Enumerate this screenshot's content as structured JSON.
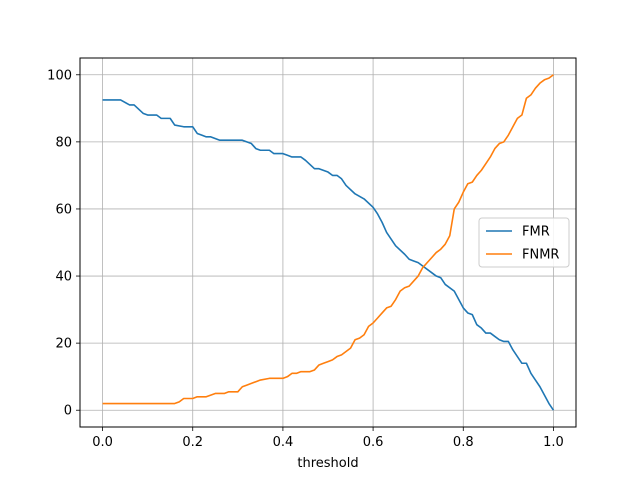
{
  "chart_data": {
    "type": "line",
    "title": "",
    "xlabel": "threshold",
    "ylabel": "",
    "xlim": [
      -0.05,
      1.05
    ],
    "ylim": [
      -5,
      105
    ],
    "xticks": [
      0.0,
      0.2,
      0.4,
      0.6,
      0.8,
      1.0
    ],
    "xtick_labels": [
      "0.0",
      "0.2",
      "0.4",
      "0.6",
      "0.8",
      "1.0"
    ],
    "yticks": [
      0,
      20,
      40,
      60,
      80,
      100
    ],
    "ytick_labels": [
      "0",
      "20",
      "40",
      "60",
      "80",
      "100"
    ],
    "grid": true,
    "legend_position": "center-right",
    "series": [
      {
        "name": "FMR",
        "color": "#1f77b4",
        "x": [
          0.0,
          0.04,
          0.06,
          0.07,
          0.09,
          0.1,
          0.12,
          0.13,
          0.15,
          0.16,
          0.18,
          0.2,
          0.21,
          0.22,
          0.23,
          0.24,
          0.26,
          0.28,
          0.31,
          0.33,
          0.34,
          0.35,
          0.37,
          0.38,
          0.4,
          0.41,
          0.42,
          0.44,
          0.45,
          0.47,
          0.48,
          0.5,
          0.51,
          0.52,
          0.53,
          0.54,
          0.56,
          0.58,
          0.6,
          0.61,
          0.62,
          0.63,
          0.65,
          0.67,
          0.68,
          0.69,
          0.7,
          0.71,
          0.73,
          0.74,
          0.75,
          0.76,
          0.78,
          0.79,
          0.8,
          0.81,
          0.82,
          0.83,
          0.84,
          0.85,
          0.86,
          0.87,
          0.88,
          0.89,
          0.9,
          0.91,
          0.92,
          0.93,
          0.94,
          0.95,
          0.96,
          0.97,
          0.98,
          0.99,
          1.0
        ],
        "y": [
          92.5,
          92.5,
          91,
          91,
          88.5,
          88,
          88,
          87,
          87,
          85,
          84.5,
          84.5,
          82.5,
          82,
          81.5,
          81.5,
          80.5,
          80.5,
          80.5,
          79.5,
          78,
          77.5,
          77.5,
          76.5,
          76.5,
          76,
          75.5,
          75.5,
          74.5,
          72,
          72,
          71,
          70,
          70,
          69,
          67,
          64.5,
          63,
          60.5,
          58.5,
          56,
          53,
          49,
          46.5,
          45,
          44.5,
          44,
          43,
          41,
          40,
          39.5,
          37.5,
          35.5,
          33,
          30.5,
          29,
          28.5,
          25.5,
          24.5,
          23,
          23,
          22,
          21,
          20.5,
          20.5,
          18,
          16,
          14,
          14,
          11,
          9,
          7,
          4.5,
          2,
          0
        ]
      },
      {
        "name": "FNMR",
        "color": "#ff7f0e",
        "x": [
          0.0,
          0.04,
          0.1,
          0.16,
          0.17,
          0.18,
          0.2,
          0.21,
          0.23,
          0.24,
          0.25,
          0.27,
          0.28,
          0.3,
          0.31,
          0.32,
          0.33,
          0.34,
          0.35,
          0.37,
          0.38,
          0.4,
          0.41,
          0.42,
          0.43,
          0.44,
          0.46,
          0.47,
          0.48,
          0.49,
          0.5,
          0.51,
          0.52,
          0.53,
          0.54,
          0.55,
          0.56,
          0.57,
          0.58,
          0.59,
          0.6,
          0.61,
          0.62,
          0.63,
          0.64,
          0.65,
          0.66,
          0.67,
          0.68,
          0.69,
          0.7,
          0.71,
          0.72,
          0.73,
          0.74,
          0.75,
          0.76,
          0.77,
          0.78,
          0.79,
          0.8,
          0.81,
          0.82,
          0.83,
          0.84,
          0.85,
          0.86,
          0.87,
          0.88,
          0.89,
          0.9,
          0.91,
          0.92,
          0.93,
          0.94,
          0.95,
          0.96,
          0.97,
          0.98,
          0.99,
          1.0
        ],
        "y": [
          2,
          2,
          2,
          2,
          2.5,
          3.5,
          3.5,
          4,
          4,
          4.5,
          5,
          5,
          5.5,
          5.5,
          7,
          7.5,
          8,
          8.5,
          9,
          9.5,
          9.5,
          9.5,
          10,
          11,
          11,
          11.5,
          11.5,
          12,
          13.5,
          14,
          14.5,
          15,
          16,
          16.5,
          17.5,
          18.5,
          21,
          21.5,
          22.5,
          25,
          26,
          27.5,
          29,
          30.5,
          31,
          33,
          35.5,
          36.5,
          37,
          38.5,
          40,
          42.5,
          44,
          45.5,
          47,
          48,
          49.5,
          52,
          60,
          62,
          65,
          67.5,
          68,
          70,
          71.5,
          73.5,
          75.5,
          78,
          79.5,
          80,
          82,
          84.5,
          87,
          88,
          93,
          94,
          96,
          97.5,
          98.5,
          99,
          100
        ]
      }
    ]
  }
}
